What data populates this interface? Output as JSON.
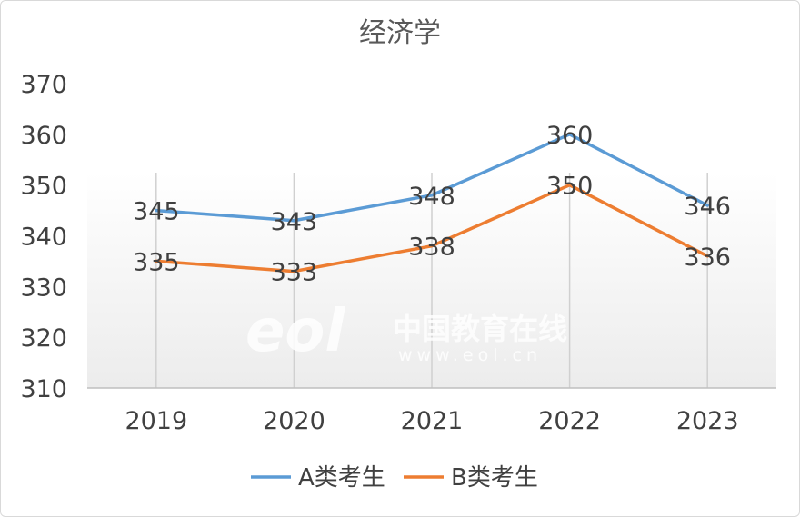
{
  "chart_data": {
    "type": "line",
    "title": "经济学",
    "categories": [
      "2019",
      "2020",
      "2021",
      "2022",
      "2023"
    ],
    "series": [
      {
        "name": "A类考生",
        "color": "#5b9bd5",
        "values": [
          345,
          343,
          348,
          360,
          346
        ]
      },
      {
        "name": "B类考生",
        "color": "#ed7d31",
        "values": [
          335,
          333,
          338,
          350,
          336
        ]
      }
    ],
    "ylim": [
      310,
      370
    ],
    "yticks": [
      310,
      320,
      330,
      340,
      350,
      360,
      370
    ],
    "grid": "vertical",
    "legend": "bottom"
  },
  "watermark": {
    "logo": "eol",
    "name": "中国教育在线",
    "url": "www.eol.cn"
  }
}
